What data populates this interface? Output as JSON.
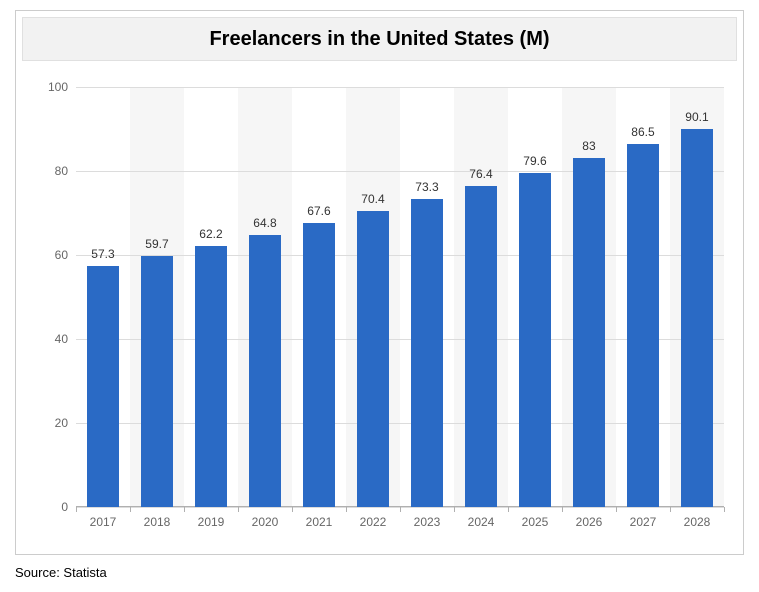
{
  "chart": {
    "type": "bar",
    "title": "Freelancers in the United States (M)",
    "title_fontsize": 20,
    "title_background": "#f2f2f2",
    "container_border": "#cccccc",
    "background_color": "#ffffff",
    "alt_band_color": "#f6f6f6",
    "grid_color": "#dcdcdc",
    "axis_color": "#b0b0b0",
    "bar_color": "#2a6ac5",
    "bar_width_ratio": 0.58,
    "categories": [
      "2017",
      "2018",
      "2019",
      "2020",
      "2021",
      "2022",
      "2023",
      "2024",
      "2025",
      "2026",
      "2027",
      "2028"
    ],
    "values": [
      57.3,
      59.7,
      62.2,
      64.8,
      67.6,
      70.4,
      73.3,
      76.4,
      79.6,
      83,
      86.5,
      90.1
    ],
    "ylim": [
      0,
      100
    ],
    "ytick_step": 20,
    "tick_fontsize": 12,
    "tick_color": "#666666",
    "data_label_fontsize": 12,
    "data_label_color": "#333333"
  },
  "source": "Source: Statista",
  "source_fontsize": 13
}
